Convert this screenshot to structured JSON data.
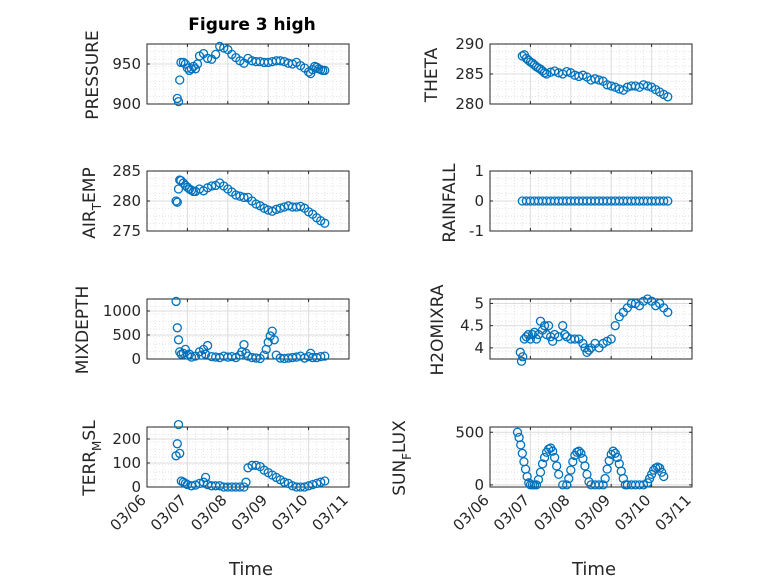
{
  "figure": {
    "title": "Figure 3 high",
    "xlabel": "Time",
    "x_tick_labels": [
      "03/06",
      "03/07",
      "03/08",
      "03/09",
      "03/10",
      "03/11"
    ],
    "marker_color": "#0072BD",
    "grid_color": "#dcdcdc",
    "axes_color": "#262626"
  },
  "chart_data": [
    {
      "type": "scatter",
      "ylabel": "PRESSURE",
      "title": "Figure 3 high",
      "xlim": [
        "03/06",
        "03/11"
      ],
      "ylim": [
        900,
        975
      ],
      "yticks": [
        900,
        950
      ],
      "series": [
        {
          "x": [
            6.75,
            6.78,
            6.81,
            6.84,
            6.9,
            6.95,
            7.0,
            7.05,
            7.1,
            7.15,
            7.2,
            7.25,
            7.3,
            7.4,
            7.5,
            7.6,
            7.7,
            7.8,
            7.9,
            8.0,
            8.1,
            8.2,
            8.3,
            8.4,
            8.5,
            8.6,
            8.7,
            8.8,
            8.9,
            9.0,
            9.1,
            9.2,
            9.3,
            9.4,
            9.5,
            9.6,
            9.7,
            9.8,
            9.9,
            10.0,
            10.05,
            10.1,
            10.15,
            10.2,
            10.25,
            10.3,
            10.35,
            10.4
          ],
          "y": [
            907,
            903,
            930,
            952,
            952,
            950,
            945,
            942,
            944,
            947,
            944,
            950,
            960,
            963,
            957,
            956,
            962,
            972,
            970,
            968,
            962,
            958,
            954,
            951,
            957,
            954,
            953,
            953,
            952,
            952,
            953,
            954,
            954,
            953,
            951,
            950,
            952,
            948,
            945,
            940,
            938,
            943,
            947,
            946,
            944,
            943,
            942,
            942
          ]
        }
      ]
    },
    {
      "type": "scatter",
      "ylabel": "THETA",
      "xlim": [
        "03/06",
        "03/11"
      ],
      "ylim": [
        280,
        290
      ],
      "yticks": [
        280,
        285,
        290
      ],
      "series": [
        {
          "x": [
            6.8,
            6.85,
            6.9,
            6.95,
            7.0,
            7.05,
            7.1,
            7.15,
            7.2,
            7.25,
            7.3,
            7.35,
            7.4,
            7.5,
            7.6,
            7.7,
            7.8,
            7.9,
            8.0,
            8.1,
            8.2,
            8.3,
            8.4,
            8.5,
            8.6,
            8.7,
            8.8,
            8.9,
            9.0,
            9.1,
            9.2,
            9.3,
            9.4,
            9.5,
            9.6,
            9.7,
            9.8,
            9.9,
            10.0,
            10.1,
            10.2,
            10.3,
            10.4
          ],
          "y": [
            288,
            288.2,
            287.6,
            287.3,
            287,
            286.8,
            286.5,
            286.2,
            286,
            285.8,
            285.5,
            285.2,
            285,
            285.3,
            285.5,
            285.2,
            285,
            285.4,
            285.2,
            284.8,
            284.6,
            284.8,
            284.5,
            284,
            284.2,
            284,
            283.8,
            283.2,
            283,
            282.8,
            282.5,
            282.3,
            282.8,
            283,
            283,
            282.8,
            283.2,
            283,
            282.8,
            282.4,
            282,
            281.6,
            281.2
          ]
        }
      ]
    },
    {
      "type": "scatter",
      "ylabel": "AIR_TEMP",
      "xlim": [
        "03/06",
        "03/11"
      ],
      "ylim": [
        275,
        285
      ],
      "yticks": [
        275,
        280,
        285
      ],
      "series": [
        {
          "x": [
            6.72,
            6.75,
            6.78,
            6.81,
            6.84,
            6.9,
            6.95,
            7.0,
            7.05,
            7.1,
            7.15,
            7.2,
            7.3,
            7.4,
            7.5,
            7.6,
            7.7,
            7.8,
            7.9,
            8.0,
            8.1,
            8.2,
            8.3,
            8.4,
            8.5,
            8.6,
            8.7,
            8.8,
            8.9,
            9.0,
            9.1,
            9.2,
            9.3,
            9.4,
            9.5,
            9.6,
            9.7,
            9.8,
            9.9,
            10.0,
            10.1,
            10.2,
            10.3,
            10.4
          ],
          "y": [
            280,
            279.8,
            282,
            283.5,
            283.4,
            283,
            282.6,
            282.3,
            282,
            281.8,
            281.6,
            281.6,
            282,
            281.7,
            282.2,
            282.5,
            282.6,
            283,
            282.5,
            282,
            281.5,
            281,
            280.8,
            280.6,
            280.6,
            280,
            279.5,
            279.2,
            278.8,
            278.5,
            278.3,
            278.6,
            278.8,
            279,
            279.2,
            279,
            279,
            279.1,
            278.8,
            278.2,
            277.8,
            277.2,
            276.7,
            276.3
          ]
        }
      ]
    },
    {
      "type": "scatter",
      "ylabel": "RAINFALL",
      "xlim": [
        "03/06",
        "03/11"
      ],
      "ylim": [
        -1,
        1
      ],
      "yticks": [
        -1,
        0,
        1
      ],
      "series": [
        {
          "x": [
            6.8,
            6.9,
            7.0,
            7.1,
            7.2,
            7.3,
            7.4,
            7.5,
            7.6,
            7.7,
            7.8,
            7.9,
            8.0,
            8.1,
            8.2,
            8.3,
            8.4,
            8.5,
            8.6,
            8.7,
            8.8,
            8.9,
            9.0,
            9.1,
            9.2,
            9.3,
            9.4,
            9.5,
            9.6,
            9.7,
            9.8,
            9.9,
            10.0,
            10.1,
            10.2,
            10.3,
            10.4
          ],
          "y": [
            0,
            0,
            0,
            0,
            0,
            0,
            0,
            0,
            0,
            0,
            0,
            0,
            0,
            0,
            0,
            0,
            0,
            0,
            0,
            0,
            0,
            0,
            0,
            0,
            0,
            0,
            0,
            0,
            0,
            0,
            0,
            0,
            0,
            0,
            0,
            0,
            0
          ]
        }
      ]
    },
    {
      "type": "scatter",
      "ylabel": "MIXDEPTH",
      "xlim": [
        "03/06",
        "03/11"
      ],
      "ylim": [
        0,
        1250
      ],
      "yticks": [
        0,
        500,
        1000
      ],
      "series": [
        {
          "x": [
            6.72,
            6.75,
            6.78,
            6.81,
            6.85,
            6.9,
            6.95,
            7.0,
            7.05,
            7.1,
            7.2,
            7.3,
            7.35,
            7.4,
            7.45,
            7.5,
            7.6,
            7.7,
            7.8,
            7.9,
            8.0,
            8.1,
            8.2,
            8.3,
            8.35,
            8.4,
            8.45,
            8.5,
            8.6,
            8.7,
            8.8,
            8.9,
            8.95,
            9.0,
            9.05,
            9.1,
            9.15,
            9.2,
            9.3,
            9.4,
            9.5,
            9.6,
            9.7,
            9.8,
            9.9,
            10.0,
            10.05,
            10.1,
            10.2,
            10.3,
            10.4
          ],
          "y": [
            1200,
            650,
            400,
            150,
            100,
            120,
            200,
            80,
            100,
            40,
            60,
            150,
            80,
            200,
            100,
            280,
            50,
            40,
            30,
            60,
            40,
            50,
            30,
            80,
            150,
            300,
            120,
            60,
            30,
            20,
            10,
            80,
            200,
            350,
            480,
            580,
            400,
            80,
            20,
            10,
            20,
            30,
            40,
            60,
            20,
            50,
            120,
            30,
            30,
            50,
            60
          ]
        }
      ]
    },
    {
      "type": "scatter",
      "ylabel": "H2OMIXRA",
      "xlim": [
        "03/06",
        "03/11"
      ],
      "ylim": [
        3.75,
        5.1
      ],
      "yticks": [
        4,
        4.5,
        5
      ],
      "series": [
        {
          "x": [
            6.75,
            6.78,
            6.81,
            6.85,
            6.9,
            6.95,
            7.0,
            7.05,
            7.1,
            7.15,
            7.2,
            7.25,
            7.3,
            7.35,
            7.4,
            7.45,
            7.5,
            7.55,
            7.6,
            7.7,
            7.8,
            7.85,
            7.9,
            8.0,
            8.1,
            8.2,
            8.3,
            8.35,
            8.4,
            8.45,
            8.5,
            8.6,
            8.7,
            8.8,
            8.9,
            9.0,
            9.1,
            9.2,
            9.3,
            9.4,
            9.5,
            9.6,
            9.7,
            9.8,
            9.9,
            10.0,
            10.1,
            10.2,
            10.3,
            10.4
          ],
          "y": [
            3.9,
            3.7,
            3.8,
            4.2,
            4.25,
            4.3,
            4.2,
            4.3,
            4.35,
            4.2,
            4.3,
            4.6,
            4.4,
            4.5,
            4.3,
            4.5,
            4.25,
            4.15,
            4.3,
            4.25,
            4.5,
            4.3,
            4.25,
            4.2,
            4.2,
            4.2,
            4.1,
            4.0,
            3.9,
            3.95,
            4.0,
            4.1,
            4.0,
            4.1,
            4.15,
            4.2,
            4.5,
            4.7,
            4.8,
            4.9,
            5.0,
            5.0,
            4.95,
            5.05,
            5.1,
            5.05,
            4.95,
            5.0,
            4.9,
            4.8
          ]
        }
      ]
    },
    {
      "type": "scatter",
      "ylabel": "TERR_MSL",
      "xlim": [
        "03/06",
        "03/11"
      ],
      "ylim": [
        0,
        250
      ],
      "yticks": [
        0,
        100,
        200
      ],
      "series": [
        {
          "x": [
            6.72,
            6.75,
            6.78,
            6.81,
            6.85,
            6.9,
            6.95,
            7.0,
            7.1,
            7.2,
            7.3,
            7.4,
            7.45,
            7.5,
            7.6,
            7.7,
            7.8,
            7.9,
            8.0,
            8.1,
            8.2,
            8.3,
            8.4,
            8.45,
            8.5,
            8.6,
            8.7,
            8.8,
            8.9,
            9.0,
            9.1,
            9.2,
            9.3,
            9.4,
            9.5,
            9.6,
            9.7,
            9.8,
            9.9,
            10.0,
            10.1,
            10.2,
            10.3,
            10.4
          ],
          "y": [
            130,
            180,
            260,
            140,
            25,
            20,
            15,
            10,
            5,
            8,
            15,
            20,
            40,
            10,
            5,
            5,
            5,
            0,
            0,
            0,
            0,
            0,
            0,
            20,
            80,
            90,
            90,
            85,
            70,
            60,
            50,
            40,
            30,
            20,
            15,
            5,
            0,
            0,
            0,
            5,
            10,
            15,
            20,
            25
          ]
        }
      ]
    },
    {
      "type": "scatter",
      "ylabel": "SUN_FLUX",
      "xlim": [
        "03/06",
        "03/11"
      ],
      "ylim": [
        -20,
        550
      ],
      "yticks": [
        0,
        500
      ],
      "series": [
        {
          "x": [
            6.68,
            6.72,
            6.76,
            6.8,
            6.84,
            6.88,
            6.92,
            6.96,
            7.0,
            7.05,
            7.1,
            7.15,
            7.2,
            7.25,
            7.3,
            7.35,
            7.4,
            7.45,
            7.5,
            7.55,
            7.6,
            7.65,
            7.7,
            7.8,
            7.9,
            7.95,
            8.0,
            8.05,
            8.1,
            8.15,
            8.2,
            8.25,
            8.3,
            8.35,
            8.4,
            8.45,
            8.5,
            8.6,
            8.7,
            8.8,
            8.85,
            8.9,
            8.95,
            9.0,
            9.05,
            9.1,
            9.15,
            9.2,
            9.25,
            9.3,
            9.35,
            9.4,
            9.5,
            9.6,
            9.7,
            9.8,
            9.9,
            9.95,
            10.0,
            10.05,
            10.1,
            10.15,
            10.2,
            10.25,
            10.3
          ],
          "y": [
            500,
            450,
            380,
            300,
            220,
            150,
            80,
            20,
            0,
            0,
            0,
            0,
            50,
            120,
            200,
            260,
            310,
            340,
            350,
            320,
            260,
            180,
            100,
            0,
            0,
            60,
            140,
            220,
            280,
            310,
            320,
            300,
            250,
            180,
            100,
            30,
            0,
            0,
            0,
            0,
            60,
            150,
            230,
            290,
            320,
            300,
            260,
            200,
            130,
            60,
            0,
            0,
            0,
            0,
            0,
            0,
            20,
            60,
            100,
            140,
            160,
            170,
            160,
            120,
            80
          ]
        }
      ]
    }
  ]
}
